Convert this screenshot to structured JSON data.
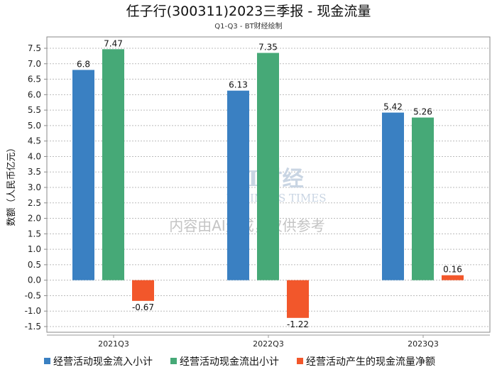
{
  "chart_data": {
    "type": "bar",
    "title": "任子行(300311)2023三季报 - 现金流量",
    "subtitle": "Q1-Q3 - BT财经绘制",
    "xlabel": "",
    "ylabel": "数额（人民币亿元）",
    "ylim": [
      -1.5,
      7.5
    ],
    "ytick_step": 0.5,
    "yticks": [
      "7.5",
      "7.0",
      "6.5",
      "6.0",
      "5.5",
      "5.0",
      "4.5",
      "4.0",
      "3.5",
      "3.0",
      "2.5",
      "2.0",
      "1.5",
      "1.0",
      "0.5",
      "0.0",
      "-0.5",
      "-1.0",
      "-1.5"
    ],
    "grid": true,
    "legend_position": "bottom",
    "categories": [
      "2021Q3",
      "2022Q3",
      "2023Q3"
    ],
    "series": [
      {
        "name": "经营活动现金流入小计",
        "color": "#3a80c2",
        "values": [
          6.8,
          6.13,
          5.42
        ],
        "labels": [
          "6.8",
          "6.13",
          "5.42"
        ]
      },
      {
        "name": "经营活动现金流出小计",
        "color": "#46a977",
        "values": [
          7.47,
          7.35,
          5.26
        ],
        "labels": [
          "7.47",
          "7.35",
          "5.26"
        ]
      },
      {
        "name": "经营活动产生的现金流量净额",
        "color": "#f2572b",
        "values": [
          -0.67,
          -1.22,
          0.16
        ],
        "labels": [
          "-0.67",
          "-1.22",
          "0.16"
        ]
      }
    ],
    "watermark": {
      "logo": "BT财经",
      "logo_sub": "BUSINESS TIMES",
      "text": "内容由AI生成，仅供参考"
    }
  }
}
